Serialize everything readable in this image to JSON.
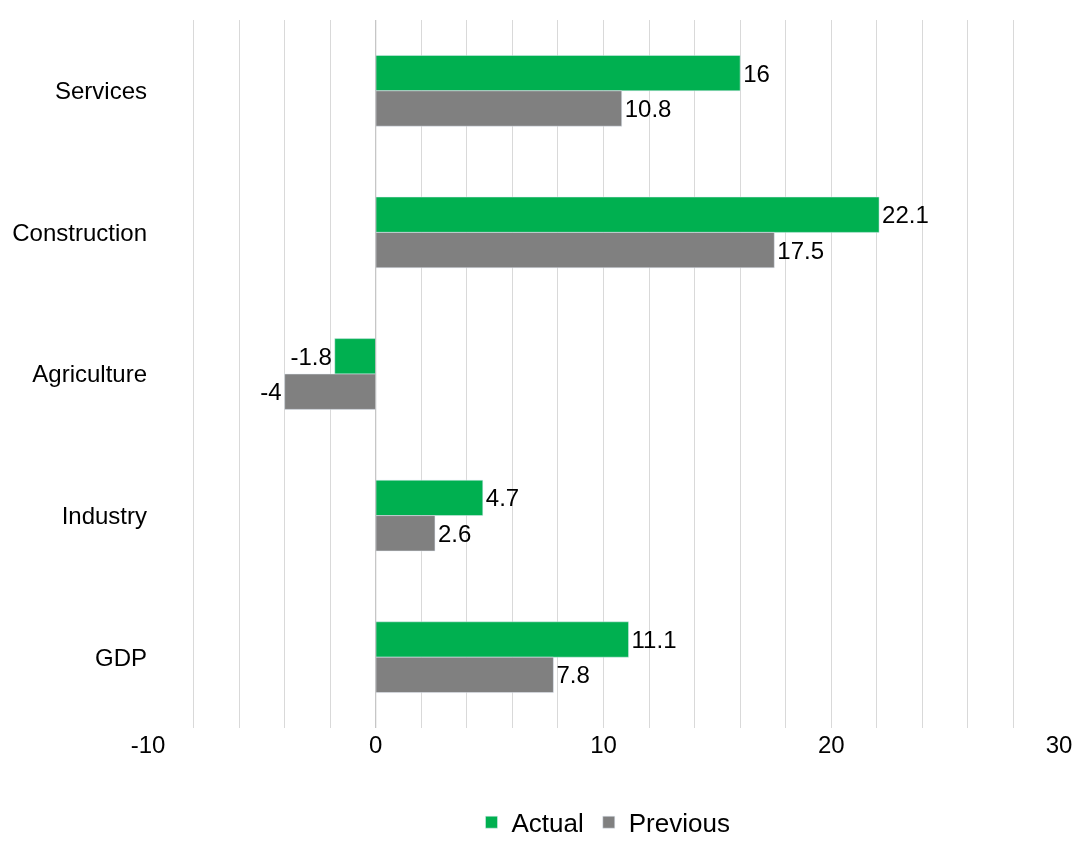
{
  "chart_data": {
    "type": "bar",
    "orientation": "horizontal",
    "categories": [
      "Services",
      "Construction",
      "Agriculture",
      "Industry",
      "GDP"
    ],
    "series": [
      {
        "name": "Actual",
        "color": "#00b050",
        "values": [
          16,
          22.1,
          -1.8,
          4.7,
          11.1
        ]
      },
      {
        "name": "Previous",
        "color": "#808080",
        "values": [
          10.8,
          17.5,
          -4,
          2.6,
          7.8
        ]
      }
    ],
    "xlim": [
      -10,
      30
    ],
    "xticks": [
      -10,
      {
        "value": -8,
        "label": null
      },
      {
        "value": -6,
        "label": null
      },
      {
        "value": -4,
        "label": null
      },
      {
        "value": -2,
        "label": null
      },
      0,
      {
        "value": 2,
        "label": null
      },
      {
        "value": 4,
        "label": null
      },
      {
        "value": 6,
        "label": null
      },
      {
        "value": 8,
        "label": null
      },
      10,
      {
        "value": 12,
        "label": null
      },
      {
        "value": 14,
        "label": null
      },
      {
        "value": 16,
        "label": null
      },
      {
        "value": 18,
        "label": null
      },
      20,
      {
        "value": 22,
        "label": null
      },
      {
        "value": 24,
        "label": null
      },
      {
        "value": 26,
        "label": null
      },
      {
        "value": 28,
        "label": null
      },
      30
    ],
    "grid": "x",
    "legend": "bottom",
    "data_labels": true
  }
}
